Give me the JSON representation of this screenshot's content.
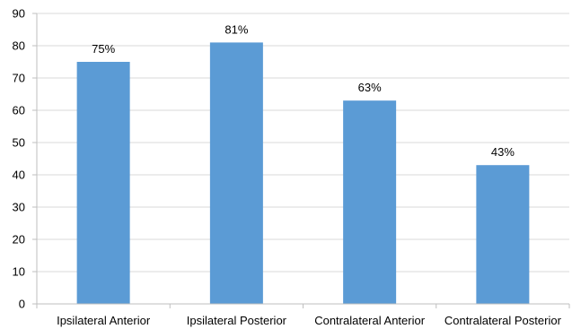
{
  "chart_data": {
    "type": "bar",
    "categories": [
      "Ipsilateral Anterior",
      "Ipsilateral Posterior",
      "Contralateral Anterior",
      "Contralateral Posterior"
    ],
    "values": [
      75,
      81,
      63,
      43
    ],
    "data_labels": [
      "75%",
      "81%",
      "63%",
      "43%"
    ],
    "yticks": [
      0,
      10,
      20,
      30,
      40,
      50,
      60,
      70,
      80,
      90
    ],
    "ylim": [
      0,
      90
    ],
    "title": "",
    "xlabel": "",
    "ylabel": "",
    "grid": true,
    "legend": "none",
    "bar_color": "#5b9bd5"
  }
}
